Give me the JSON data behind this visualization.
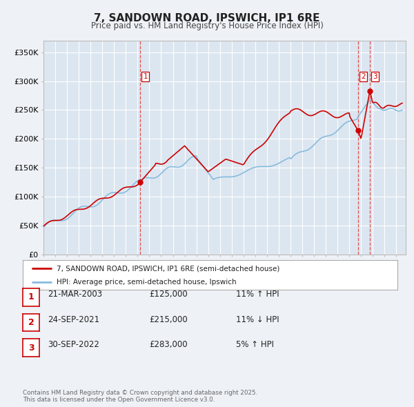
{
  "title": "7, SANDOWN ROAD, IPSWICH, IP1 6RE",
  "subtitle": "Price paid vs. HM Land Registry's House Price Index (HPI)",
  "bg_color": "#eef2f7",
  "plot_bg_color": "#dce6f0",
  "grid_color": "#ffffff",
  "legend_label_red": "7, SANDOWN ROAD, IPSWICH, IP1 6RE (semi-detached house)",
  "legend_label_blue": "HPI: Average price, semi-detached house, Ipswich",
  "footer": "Contains HM Land Registry data © Crown copyright and database right 2025.\nThis data is licensed under the Open Government Licence v3.0.",
  "transactions": [
    {
      "num": 1,
      "date": "21-MAR-2003",
      "price": "£125,000",
      "hpi": "11% ↑ HPI",
      "x_year": 2003.22,
      "price_val": 125000
    },
    {
      "num": 2,
      "date": "24-SEP-2021",
      "price": "£215,000",
      "hpi": "11% ↓ HPI",
      "x_year": 2021.73,
      "price_val": 215000
    },
    {
      "num": 3,
      "date": "30-SEP-2022",
      "price": "£283,000",
      "hpi": "5% ↑ HPI",
      "x_year": 2022.75,
      "price_val": 283000
    }
  ],
  "vline_color": "#e05050",
  "red_line_color": "#cc0000",
  "blue_line_color": "#88bbdd",
  "ylim": [
    0,
    370000
  ],
  "xlim_start": 1995.0,
  "xlim_end": 2025.8,
  "ytick_vals": [
    0,
    50000,
    100000,
    150000,
    200000,
    250000,
    300000,
    350000
  ],
  "ytick_labels": [
    "£0",
    "£50K",
    "£100K",
    "£150K",
    "£200K",
    "£250K",
    "£300K",
    "£350K"
  ]
}
